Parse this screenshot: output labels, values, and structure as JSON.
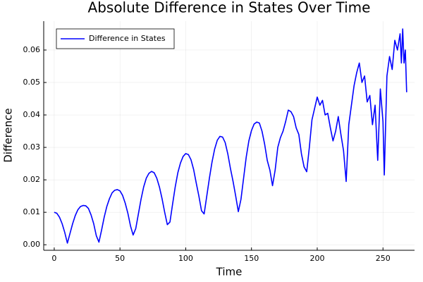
{
  "chart_data": {
    "type": "line",
    "title": "Absolute Difference in States Over Time",
    "xlabel": "Time",
    "ylabel": "Difference",
    "x": [
      0,
      2,
      4,
      6,
      8,
      10,
      12,
      14,
      16,
      18,
      20,
      22,
      24,
      26,
      28,
      30,
      32,
      34,
      36,
      38,
      40,
      42,
      44,
      46,
      48,
      50,
      52,
      54,
      56,
      58,
      60,
      62,
      64,
      66,
      68,
      70,
      72,
      74,
      76,
      78,
      80,
      82,
      84,
      86,
      88,
      90,
      92,
      94,
      96,
      98,
      100,
      102,
      104,
      106,
      108,
      110,
      112,
      114,
      116,
      118,
      120,
      122,
      124,
      126,
      128,
      130,
      132,
      134,
      136,
      138,
      140,
      142,
      144,
      146,
      148,
      150,
      152,
      154,
      156,
      158,
      160,
      162,
      164,
      166,
      168,
      170,
      172,
      174,
      176,
      178,
      180,
      182,
      184,
      186,
      188,
      190,
      192,
      194,
      196,
      198,
      200,
      202,
      204,
      206,
      208,
      210,
      212,
      214,
      216,
      218,
      220,
      222,
      224,
      226,
      228,
      230,
      232,
      234,
      236,
      238,
      240,
      242,
      244,
      246,
      248,
      250,
      251,
      253,
      255,
      257,
      259,
      261,
      263,
      264,
      265,
      266,
      267,
      268
    ],
    "series": [
      {
        "name": "Difference in States",
        "color": "#0000ff",
        "values": [
          0.01,
          0.0097,
          0.0085,
          0.0065,
          0.0038,
          0.0005,
          0.0035,
          0.0065,
          0.009,
          0.0108,
          0.0118,
          0.0121,
          0.012,
          0.0112,
          0.0092,
          0.0065,
          0.0028,
          0.0008,
          0.0045,
          0.0085,
          0.0118,
          0.0142,
          0.016,
          0.0168,
          0.017,
          0.0166,
          0.0152,
          0.0128,
          0.0097,
          0.0058,
          0.003,
          0.005,
          0.0095,
          0.014,
          0.0178,
          0.0205,
          0.022,
          0.0226,
          0.0222,
          0.0205,
          0.0178,
          0.0142,
          0.01,
          0.0062,
          0.007,
          0.0125,
          0.0178,
          0.0222,
          0.0252,
          0.0272,
          0.0281,
          0.0278,
          0.0262,
          0.0232,
          0.019,
          0.015,
          0.0105,
          0.0095,
          0.015,
          0.0205,
          0.0255,
          0.0295,
          0.0322,
          0.0334,
          0.0332,
          0.0315,
          0.028,
          0.0235,
          0.0195,
          0.015,
          0.0102,
          0.014,
          0.0205,
          0.027,
          0.032,
          0.0352,
          0.0372,
          0.0378,
          0.0375,
          0.035,
          0.031,
          0.026,
          0.023,
          0.0182,
          0.023,
          0.03,
          0.033,
          0.035,
          0.038,
          0.0415,
          0.041,
          0.0395,
          0.036,
          0.034,
          0.028,
          0.024,
          0.0225,
          0.03,
          0.0385,
          0.042,
          0.0455,
          0.043,
          0.0445,
          0.04,
          0.0405,
          0.036,
          0.032,
          0.035,
          0.0395,
          0.034,
          0.029,
          0.0195,
          0.037,
          0.043,
          0.049,
          0.053,
          0.056,
          0.05,
          0.052,
          0.044,
          0.046,
          0.037,
          0.043,
          0.026,
          0.048,
          0.038,
          0.0215,
          0.052,
          0.058,
          0.054,
          0.063,
          0.06,
          0.065,
          0.056,
          0.0665,
          0.056,
          0.06,
          0.047
        ]
      }
    ],
    "xlim": [
      -8,
      274
    ],
    "xticks": [
      0,
      50,
      100,
      150,
      200,
      250
    ],
    "ylim": [
      -0.0017,
      0.0689
    ],
    "yticks": [
      {
        "value": 0,
        "label": "0.00"
      },
      {
        "value": 0.01,
        "label": "0.01"
      },
      {
        "value": 0.02,
        "label": "0.02"
      },
      {
        "value": 0.03,
        "label": "0.03"
      },
      {
        "value": 0.04,
        "label": "0.04"
      },
      {
        "value": 0.05,
        "label": "0.05"
      },
      {
        "value": 0.06,
        "label": "0.06"
      }
    ],
    "grid": true,
    "legend": "top-left"
  }
}
